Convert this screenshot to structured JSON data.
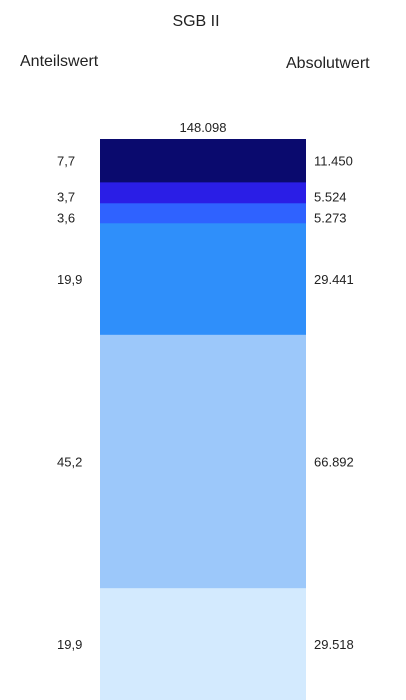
{
  "chart_data": {
    "type": "bar",
    "stacked": true,
    "title": "SGB II",
    "left_column_header": "Anteilswert",
    "right_column_header": "Absolutwert",
    "total_label": "148.098",
    "total_value": 148098,
    "series": [
      {
        "share_label": "7,7",
        "share": 7.7,
        "absolute_label": "11.450",
        "absolute": 11450,
        "color": "#0a0a6e"
      },
      {
        "share_label": "3,7",
        "share": 3.7,
        "absolute_label": "5.524",
        "absolute": 5524,
        "color": "#2a1ee6"
      },
      {
        "share_label": "3,6",
        "share": 3.6,
        "absolute_label": "5.273",
        "absolute": 5273,
        "color": "#2f62ff"
      },
      {
        "share_label": "19,9",
        "share": 19.9,
        "absolute_label": "29.441",
        "absolute": 29441,
        "color": "#2f8ffa"
      },
      {
        "share_label": "45,2",
        "share": 45.2,
        "absolute_label": "66.892",
        "absolute": 66892,
        "color": "#9cc8fa"
      },
      {
        "share_label": "19,9",
        "share": 19.9,
        "absolute_label": "29.518",
        "absolute": 29518,
        "color": "#d3eafe"
      }
    ]
  }
}
